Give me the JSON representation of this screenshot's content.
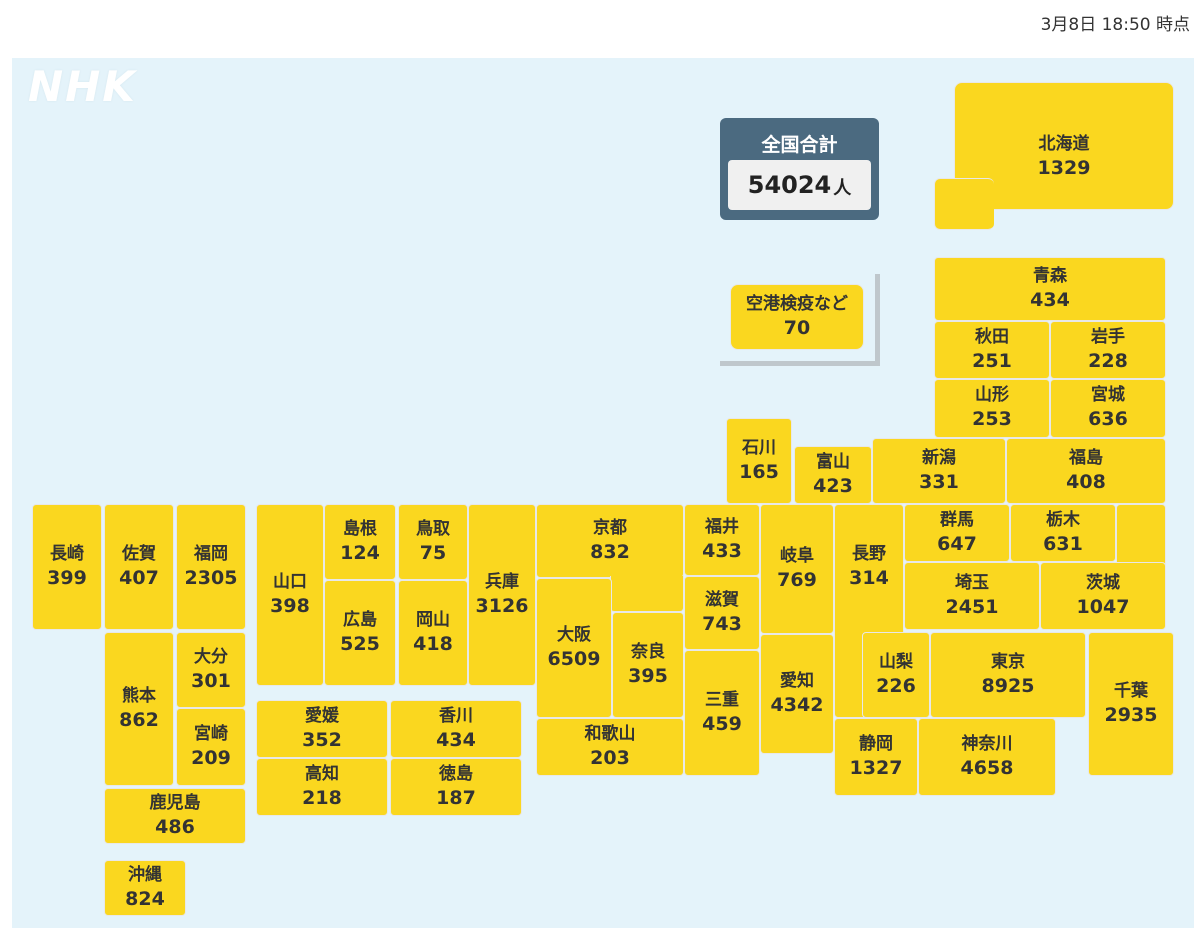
{
  "timestamp": "3月8日 18:50 時点",
  "logo": "NHK",
  "total": {
    "label": "全国合計",
    "value": "54024",
    "unit": "人"
  },
  "prefectures": {
    "hokkaido": {
      "name": "北海道",
      "value": "1329"
    },
    "aomori": {
      "name": "青森",
      "value": "434"
    },
    "akita": {
      "name": "秋田",
      "value": "251"
    },
    "iwate": {
      "name": "岩手",
      "value": "228"
    },
    "yamagata": {
      "name": "山形",
      "value": "253"
    },
    "miyagi": {
      "name": "宮城",
      "value": "636"
    },
    "airport": {
      "name": "空港検疫など",
      "value": "70"
    },
    "ishikawa": {
      "name": "石川",
      "value": "165"
    },
    "toyama": {
      "name": "富山",
      "value": "423"
    },
    "niigata": {
      "name": "新潟",
      "value": "331"
    },
    "fukushima": {
      "name": "福島",
      "value": "408"
    },
    "nagasaki": {
      "name": "長崎",
      "value": "399"
    },
    "saga": {
      "name": "佐賀",
      "value": "407"
    },
    "fukuoka": {
      "name": "福岡",
      "value": "2305"
    },
    "yamaguchi": {
      "name": "山口",
      "value": "398"
    },
    "shimane": {
      "name": "島根",
      "value": "124"
    },
    "tottori": {
      "name": "鳥取",
      "value": "75"
    },
    "hyogo": {
      "name": "兵庫",
      "value": "3126"
    },
    "kyoto": {
      "name": "京都",
      "value": "832"
    },
    "fukui": {
      "name": "福井",
      "value": "433"
    },
    "gifu": {
      "name": "岐阜",
      "value": "769"
    },
    "nagano": {
      "name": "長野",
      "value": "314"
    },
    "gunma": {
      "name": "群馬",
      "value": "647"
    },
    "tochigi": {
      "name": "栃木",
      "value": "631"
    },
    "hiroshima": {
      "name": "広島",
      "value": "525"
    },
    "okayama": {
      "name": "岡山",
      "value": "418"
    },
    "osaka": {
      "name": "大阪",
      "value": "6509"
    },
    "nara": {
      "name": "奈良",
      "value": "395"
    },
    "shiga": {
      "name": "滋賀",
      "value": "743"
    },
    "saitama": {
      "name": "埼玉",
      "value": "2451"
    },
    "ibaraki": {
      "name": "茨城",
      "value": "1047"
    },
    "kumamoto": {
      "name": "熊本",
      "value": "862"
    },
    "oita": {
      "name": "大分",
      "value": "301"
    },
    "yamanashi": {
      "name": "山梨",
      "value": "226"
    },
    "tokyo": {
      "name": "東京",
      "value": "8925"
    },
    "chiba": {
      "name": "千葉",
      "value": "2935"
    },
    "aichi": {
      "name": "愛知",
      "value": "4342"
    },
    "mie": {
      "name": "三重",
      "value": "459"
    },
    "ehime": {
      "name": "愛媛",
      "value": "352"
    },
    "kagawa": {
      "name": "香川",
      "value": "434"
    },
    "miyazaki": {
      "name": "宮崎",
      "value": "209"
    },
    "wakayama": {
      "name": "和歌山",
      "value": "203"
    },
    "shizuoka": {
      "name": "静岡",
      "value": "1327"
    },
    "kanagawa": {
      "name": "神奈川",
      "value": "4658"
    },
    "kochi": {
      "name": "高知",
      "value": "218"
    },
    "tokushima": {
      "name": "徳島",
      "value": "187"
    },
    "kagoshima": {
      "name": "鹿児島",
      "value": "486"
    },
    "okinawa": {
      "name": "沖縄",
      "value": "824"
    }
  }
}
